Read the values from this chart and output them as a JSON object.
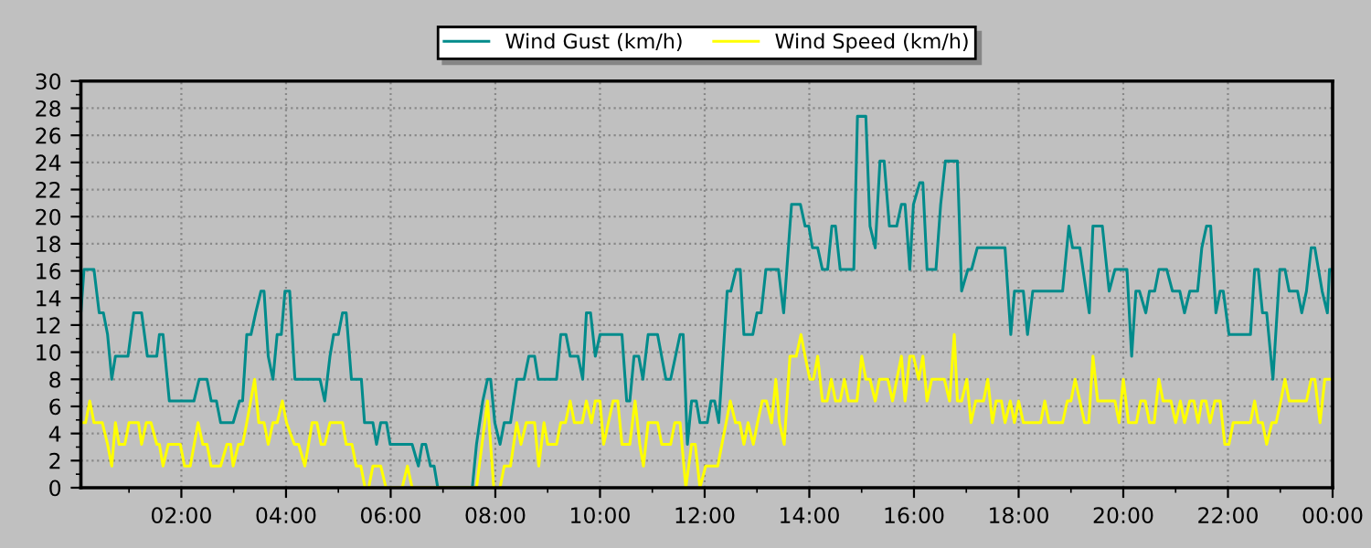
{
  "chart_data": {
    "type": "line",
    "xlim": [
      0.08,
      24
    ],
    "ylim": [
      0,
      30
    ],
    "xticks": [
      {
        "value": 2,
        "label": "02:00"
      },
      {
        "value": 4,
        "label": "04:00"
      },
      {
        "value": 6,
        "label": "06:00"
      },
      {
        "value": 8,
        "label": "08:00"
      },
      {
        "value": 10,
        "label": "10:00"
      },
      {
        "value": 12,
        "label": "12:00"
      },
      {
        "value": 14,
        "label": "14:00"
      },
      {
        "value": 16,
        "label": "16:00"
      },
      {
        "value": 18,
        "label": "18:00"
      },
      {
        "value": 20,
        "label": "20:00"
      },
      {
        "value": 22,
        "label": "22:00"
      },
      {
        "value": 24,
        "label": "00:00"
      }
    ],
    "yticks": [
      0,
      2,
      4,
      6,
      8,
      10,
      12,
      14,
      16,
      18,
      20,
      22,
      24,
      26,
      28,
      30
    ],
    "grid": true,
    "legend": "top",
    "marker": "none",
    "line_style": "solid",
    "series": [
      {
        "name": "Wind Gust (km/h)",
        "color": "#008b8b",
        "x": [
          0.08,
          0.14,
          0.33,
          0.43,
          0.51,
          0.59,
          0.67,
          0.74,
          0.98,
          1.09,
          1.24,
          1.35,
          1.53,
          1.58,
          1.65,
          1.77,
          2.24,
          2.34,
          2.49,
          2.57,
          2.67,
          2.75,
          2.99,
          3.11,
          3.17,
          3.25,
          3.33,
          3.42,
          3.52,
          3.58,
          3.66,
          3.75,
          3.83,
          3.91,
          3.98,
          4.07,
          4.17,
          4.65,
          4.74,
          4.84,
          4.91,
          5.0,
          5.08,
          5.15,
          5.25,
          5.44,
          5.5,
          5.66,
          5.73,
          5.81,
          5.92,
          5.99,
          6.41,
          6.53,
          6.6,
          6.67,
          6.76,
          6.83,
          6.9,
          7.56,
          7.64,
          7.76,
          7.85,
          7.91,
          7.99,
          8.09,
          8.17,
          8.29,
          8.41,
          8.55,
          8.64,
          8.75,
          8.82,
          9.17,
          9.25,
          9.35,
          9.43,
          9.58,
          9.67,
          9.74,
          9.82,
          9.91,
          10.0,
          10.42,
          10.51,
          10.57,
          10.65,
          10.74,
          10.82,
          10.92,
          11.1,
          11.26,
          11.35,
          11.53,
          11.59,
          11.67,
          11.75,
          11.84,
          11.91,
          12.05,
          12.12,
          12.19,
          12.27,
          12.43,
          12.5,
          12.6,
          12.68,
          12.75,
          12.92,
          13.0,
          13.08,
          13.17,
          13.41,
          13.51,
          13.66,
          13.83,
          13.92,
          13.99,
          14.06,
          14.16,
          14.25,
          14.35,
          14.43,
          14.5,
          14.59,
          14.85,
          14.92,
          15.08,
          15.16,
          15.26,
          15.35,
          15.43,
          15.53,
          15.67,
          15.76,
          15.83,
          15.92,
          15.99,
          16.11,
          16.17,
          16.25,
          16.42,
          16.51,
          16.6,
          16.83,
          16.91,
          17.03,
          17.1,
          17.21,
          17.74,
          17.85,
          17.92,
          18.09,
          18.17,
          18.27,
          18.84,
          18.96,
          19.03,
          19.17,
          19.35,
          19.42,
          19.6,
          19.73,
          19.84,
          20.07,
          20.16,
          20.24,
          20.31,
          20.43,
          20.5,
          20.6,
          20.68,
          20.83,
          20.94,
          21.08,
          21.17,
          21.27,
          21.42,
          21.5,
          21.59,
          21.67,
          21.77,
          21.85,
          21.91,
          22.02,
          22.43,
          22.51,
          22.58,
          22.66,
          22.74,
          22.86,
          22.99,
          23.09,
          23.17,
          23.33,
          23.41,
          23.5,
          23.59,
          23.66,
          23.8,
          23.9,
          23.94,
          23.98
        ],
        "values": [
          12.9,
          16.1,
          16.1,
          12.9,
          12.9,
          11.3,
          8.0,
          9.7,
          9.7,
          12.9,
          12.9,
          9.7,
          9.7,
          11.3,
          11.3,
          6.4,
          6.4,
          8.0,
          8.0,
          6.4,
          6.4,
          4.8,
          4.8,
          6.4,
          6.4,
          11.3,
          11.3,
          12.9,
          14.5,
          14.5,
          9.7,
          8.0,
          11.3,
          11.3,
          14.5,
          14.5,
          8.0,
          8.0,
          6.4,
          9.7,
          11.3,
          11.3,
          12.9,
          12.9,
          8.0,
          8.0,
          4.8,
          4.8,
          3.2,
          4.8,
          4.8,
          3.2,
          3.2,
          1.6,
          3.2,
          3.2,
          1.6,
          1.6,
          0,
          0,
          3.2,
          6.4,
          8.0,
          8.0,
          4.8,
          3.2,
          4.8,
          4.8,
          8.0,
          8.0,
          9.7,
          9.7,
          8.0,
          8.0,
          11.3,
          11.3,
          9.7,
          9.7,
          8.0,
          12.9,
          12.9,
          9.7,
          11.3,
          11.3,
          6.4,
          6.4,
          9.7,
          9.7,
          8.0,
          11.3,
          11.3,
          8.0,
          8.0,
          11.3,
          11.3,
          3.2,
          6.4,
          6.4,
          4.8,
          4.8,
          6.4,
          6.4,
          4.8,
          14.5,
          14.5,
          16.1,
          16.1,
          11.3,
          11.3,
          12.9,
          12.9,
          16.1,
          16.1,
          12.9,
          20.9,
          20.9,
          19.3,
          19.3,
          17.7,
          17.7,
          16.1,
          16.1,
          19.3,
          19.3,
          16.1,
          16.1,
          27.4,
          27.4,
          19.3,
          17.7,
          24.1,
          24.1,
          19.3,
          19.3,
          20.9,
          20.9,
          16.1,
          20.9,
          22.5,
          22.5,
          16.1,
          16.1,
          20.9,
          24.1,
          24.1,
          14.5,
          16.1,
          16.1,
          17.7,
          17.7,
          11.3,
          14.5,
          14.5,
          11.3,
          14.5,
          14.5,
          19.3,
          17.7,
          17.7,
          12.9,
          19.3,
          19.3,
          14.5,
          16.1,
          16.1,
          9.7,
          14.5,
          14.5,
          12.9,
          14.5,
          14.5,
          16.1,
          16.1,
          14.5,
          14.5,
          12.9,
          14.5,
          14.5,
          17.7,
          19.3,
          19.3,
          12.9,
          14.5,
          14.5,
          11.3,
          11.3,
          16.1,
          16.1,
          12.9,
          12.9,
          8.0,
          16.1,
          16.1,
          14.5,
          14.5,
          12.9,
          14.5,
          17.7,
          17.7,
          14.5,
          12.9,
          16.1,
          16.1
        ]
      },
      {
        "name": "Wind Speed (km/h)",
        "color": "#ffff00",
        "x": [
          0.08,
          0.17,
          0.25,
          0.33,
          0.49,
          0.59,
          0.67,
          0.74,
          0.81,
          0.92,
          1.0,
          1.18,
          1.24,
          1.33,
          1.42,
          1.53,
          1.58,
          1.65,
          1.75,
          1.98,
          2.06,
          2.17,
          2.32,
          2.41,
          2.49,
          2.57,
          2.75,
          2.87,
          2.94,
          2.99,
          3.09,
          3.17,
          3.25,
          3.4,
          3.48,
          3.58,
          3.66,
          3.75,
          3.83,
          3.93,
          4.01,
          4.16,
          4.24,
          4.36,
          4.5,
          4.59,
          4.67,
          4.74,
          4.84,
          5.08,
          5.15,
          5.26,
          5.34,
          5.43,
          5.51,
          5.58,
          5.66,
          5.81,
          5.91,
          6.22,
          6.32,
          6.41,
          7.64,
          7.85,
          7.97,
          8.09,
          8.17,
          8.29,
          8.41,
          8.49,
          8.59,
          8.75,
          8.83,
          8.93,
          9.0,
          9.17,
          9.25,
          9.34,
          9.43,
          9.51,
          9.66,
          9.74,
          9.84,
          9.91,
          10.0,
          10.07,
          10.25,
          10.34,
          10.42,
          10.57,
          10.67,
          10.76,
          10.83,
          10.92,
          11.1,
          11.18,
          11.35,
          11.43,
          11.53,
          11.64,
          11.75,
          11.82,
          11.91,
          12.02,
          12.25,
          12.49,
          12.59,
          12.67,
          12.75,
          12.83,
          12.93,
          13.01,
          13.1,
          13.18,
          13.28,
          13.36,
          13.43,
          13.52,
          13.63,
          13.75,
          13.84,
          13.92,
          14.01,
          14.08,
          14.16,
          14.25,
          14.34,
          14.42,
          14.5,
          14.59,
          14.67,
          14.75,
          14.91,
          15.0,
          15.08,
          15.16,
          15.26,
          15.34,
          15.5,
          15.59,
          15.76,
          15.83,
          15.92,
          15.99,
          16.09,
          16.17,
          16.25,
          16.34,
          16.58,
          16.68,
          16.77,
          16.83,
          16.91,
          17.01,
          17.09,
          17.18,
          17.33,
          17.41,
          17.5,
          17.57,
          17.67,
          17.74,
          17.84,
          17.92,
          18.0,
          18.09,
          18.42,
          18.5,
          18.58,
          18.84,
          18.93,
          19.0,
          19.08,
          19.17,
          19.26,
          19.34,
          19.42,
          19.51,
          19.84,
          19.92,
          20.0,
          20.1,
          20.25,
          20.33,
          20.42,
          20.5,
          20.59,
          20.68,
          20.76,
          20.91,
          21.0,
          21.09,
          21.17,
          21.27,
          21.35,
          21.43,
          21.5,
          21.58,
          21.66,
          21.75,
          21.85,
          21.94,
          22.02,
          22.1,
          22.43,
          22.51,
          22.58,
          22.66,
          22.74,
          22.84,
          22.92,
          23.01,
          23.09,
          23.17,
          23.5,
          23.59,
          23.66,
          23.76,
          23.85,
          23.97
        ],
        "values": [
          4.8,
          4.8,
          6.4,
          4.8,
          4.8,
          3.2,
          1.6,
          4.8,
          3.2,
          3.2,
          4.8,
          4.8,
          3.2,
          4.8,
          4.8,
          3.2,
          3.2,
          1.6,
          3.2,
          3.2,
          1.6,
          1.6,
          4.8,
          3.2,
          3.2,
          1.6,
          1.6,
          3.2,
          3.2,
          1.6,
          3.2,
          3.2,
          4.8,
          8.0,
          4.8,
          4.8,
          3.2,
          4.8,
          4.8,
          6.4,
          4.8,
          3.2,
          3.2,
          1.6,
          4.8,
          4.8,
          3.2,
          3.2,
          4.8,
          4.8,
          3.2,
          3.2,
          1.6,
          1.6,
          0,
          0,
          1.6,
          1.6,
          0,
          0,
          1.6,
          0,
          0,
          6.4,
          0,
          0,
          1.6,
          1.6,
          4.8,
          3.2,
          4.8,
          4.8,
          1.6,
          4.8,
          3.2,
          3.2,
          4.8,
          4.8,
          6.4,
          4.8,
          4.8,
          6.4,
          4.8,
          6.4,
          6.4,
          3.2,
          6.4,
          6.4,
          3.2,
          3.2,
          6.4,
          3.2,
          1.6,
          4.8,
          4.8,
          3.2,
          3.2,
          4.8,
          4.8,
          0,
          3.2,
          3.2,
          0,
          1.6,
          1.6,
          6.4,
          4.8,
          4.8,
          3.2,
          4.8,
          3.2,
          4.8,
          6.4,
          6.4,
          4.8,
          8.0,
          4.8,
          3.2,
          9.7,
          9.7,
          11.3,
          9.7,
          8.0,
          8.0,
          9.7,
          6.4,
          6.4,
          8.0,
          6.4,
          6.4,
          8.0,
          6.4,
          6.4,
          9.7,
          8.0,
          8.0,
          6.4,
          8.0,
          8.0,
          6.4,
          9.7,
          6.4,
          9.7,
          9.7,
          8.0,
          9.7,
          6.4,
          8.0,
          8.0,
          6.4,
          11.3,
          6.4,
          6.4,
          8.0,
          4.8,
          6.4,
          6.4,
          8.0,
          4.8,
          6.4,
          6.4,
          4.8,
          6.4,
          4.8,
          6.4,
          4.8,
          4.8,
          6.4,
          4.8,
          4.8,
          6.4,
          6.4,
          8.0,
          6.4,
          4.8,
          4.8,
          9.7,
          6.4,
          6.4,
          4.8,
          8.0,
          4.8,
          4.8,
          6.4,
          6.4,
          4.8,
          4.8,
          8.0,
          6.4,
          6.4,
          4.8,
          6.4,
          4.8,
          6.4,
          6.4,
          4.8,
          6.4,
          6.4,
          4.8,
          6.4,
          6.4,
          3.2,
          3.2,
          4.8,
          4.8,
          6.4,
          4.8,
          4.8,
          3.2,
          4.8,
          4.8,
          6.4,
          8.0,
          6.4,
          6.4,
          8.0,
          8.0,
          4.8,
          8.0,
          8.0
        ]
      }
    ]
  }
}
